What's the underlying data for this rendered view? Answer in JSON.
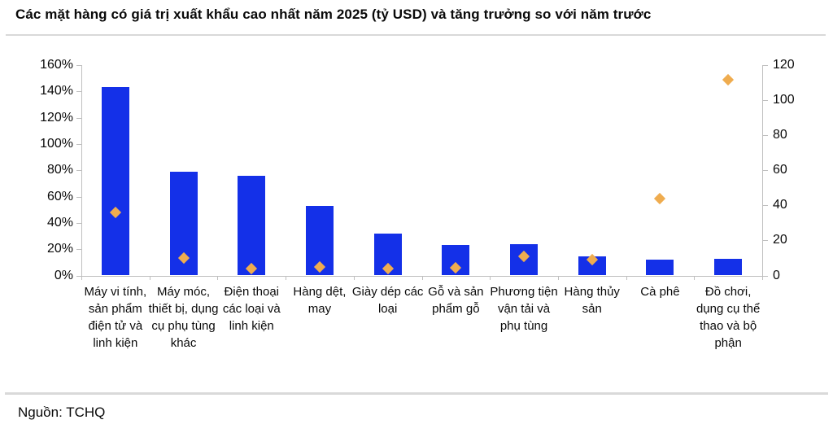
{
  "title": "Các mặt hàng có giá trị xuất khẩu cao nhất năm 2025 (tỷ USD) và tăng trưởng so với năm trước",
  "source": "Nguồn: TCHQ",
  "colors": {
    "bar": "#1430e8",
    "marker": "#efac4f",
    "axis": "#bfbfbf",
    "divider": "#d9d9d9",
    "text": "#0a0a0a"
  },
  "chart_data": {
    "type": "bar",
    "subtype": "combo-bar-with-diamond-markers",
    "title": "Các mặt hàng có giá trị xuất khẩu cao nhất năm 2025 (tỷ USD) và tăng trưởng so với năm trước",
    "grid": false,
    "legend_position": "none",
    "categories": [
      "Máy vi tính, sản phẩm điện tử và linh kiện",
      "Máy móc, thiết bị, dụng cụ phụ tùng khác",
      "Điện thoại các loại và linh kiện",
      "Hàng dệt, may",
      "Giày dép các loại",
      "Gỗ và sản phẩm gỗ",
      "Phương tiện vận tải và phụ tùng",
      "Hàng thủy sản",
      "Cà phê",
      "Đồ chơi, dụng cụ thể thao và bộ phận"
    ],
    "series": [
      {
        "name": "Giá trị xuất khẩu năm 2025 (tỷ USD)",
        "type": "bar",
        "axis": "right",
        "values": [
          107.5,
          59,
          57,
          39.5,
          24,
          17.5,
          18,
          11,
          9,
          9.5
        ]
      },
      {
        "name": "Tăng trưởng so với năm trước (%)",
        "type": "scatter",
        "marker": "diamond",
        "axis": "left",
        "values": [
          48,
          13,
          5.5,
          6.5,
          5.5,
          6,
          14.5,
          12,
          58.5,
          149
        ]
      }
    ],
    "left_axis": {
      "min": 0,
      "max": 160,
      "step": 20,
      "unit": "%",
      "tick_labels": [
        "0%",
        "20%",
        "40%",
        "60%",
        "80%",
        "100%",
        "120%",
        "140%",
        "160%"
      ]
    },
    "right_axis": {
      "min": 0,
      "max": 120,
      "step": 20,
      "unit": "tỷ USD",
      "tick_labels": [
        "0",
        "20",
        "40",
        "60",
        "80",
        "100",
        "120"
      ]
    }
  }
}
